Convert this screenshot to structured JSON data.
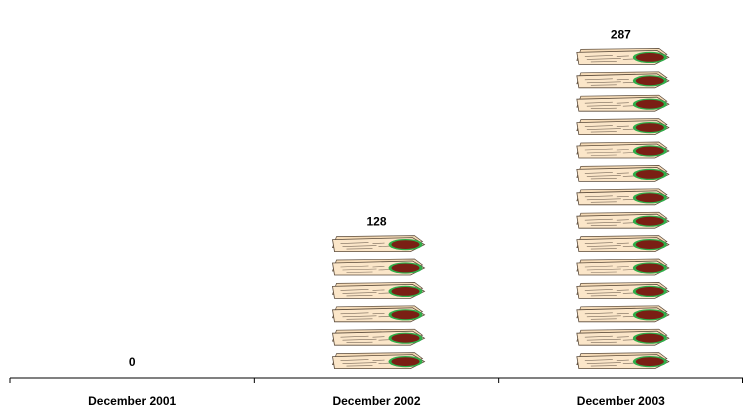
{
  "chart_data": {
    "type": "bar",
    "style": "pictograph",
    "pictogram": "document-with-seal",
    "categories": [
      "December 2001",
      "December 2002",
      "December 2003"
    ],
    "values": [
      0,
      128,
      287
    ],
    "data_labels": [
      "0",
      "128",
      "287"
    ],
    "ylim": [
      0,
      300
    ],
    "grid": false,
    "legend": "none",
    "colors": {
      "paper": "#fbe6c9",
      "paper_outline": "#5a4a3a",
      "seal": "#7a1f14",
      "seal_ring": "#2fae49",
      "axis": "#000000",
      "text": "#000000"
    }
  }
}
